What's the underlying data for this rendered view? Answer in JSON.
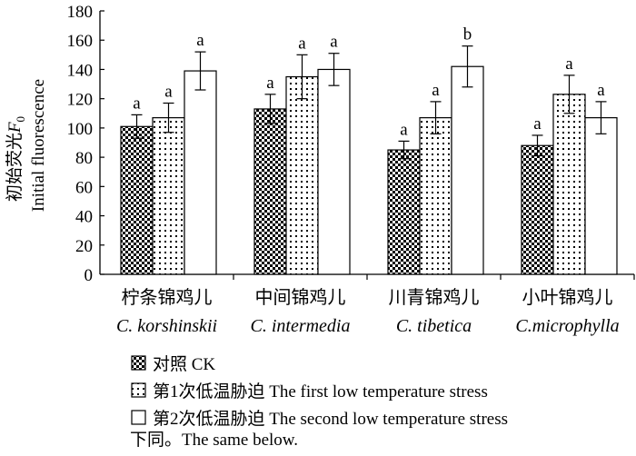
{
  "chart_data": {
    "type": "bar",
    "ylabel_cn": "初始荧光",
    "ylabel_var": "F",
    "ylabel_sub": "0",
    "ylabel_en": "Initial fluorescence",
    "ylim": [
      0,
      180
    ],
    "yticks": [
      0,
      20,
      40,
      60,
      80,
      100,
      120,
      140,
      160,
      180
    ],
    "categories": [
      {
        "cn": "柠条锦鸡儿",
        "latin": "C. korshinskii"
      },
      {
        "cn": "中间锦鸡儿",
        "latin": "C. intermedia"
      },
      {
        "cn": "川青锦鸡儿",
        "latin": "C. tibetica"
      },
      {
        "cn": "小叶锦鸡儿",
        "latin": "C.microphylla"
      }
    ],
    "series": [
      {
        "name": "对照 CK",
        "pattern": "checker",
        "values": [
          101,
          113,
          85,
          88
        ],
        "errors": [
          8,
          10,
          6,
          7
        ],
        "letters": [
          "a",
          "a",
          "a",
          "a"
        ]
      },
      {
        "name": "第1次低温胁迫 The first low temperature stress",
        "pattern": "dots",
        "values": [
          107,
          135,
          107,
          123
        ],
        "errors": [
          10,
          15,
          11,
          13
        ],
        "letters": [
          "a",
          "a",
          "a",
          "a"
        ]
      },
      {
        "name": "第2次低温胁迫 The second low temperature stress",
        "pattern": "white",
        "values": [
          139,
          140,
          142,
          107
        ],
        "errors": [
          13,
          11,
          14,
          11
        ],
        "letters": [
          "a",
          "a",
          "b",
          "a"
        ]
      }
    ],
    "note": "下同。The same below."
  }
}
